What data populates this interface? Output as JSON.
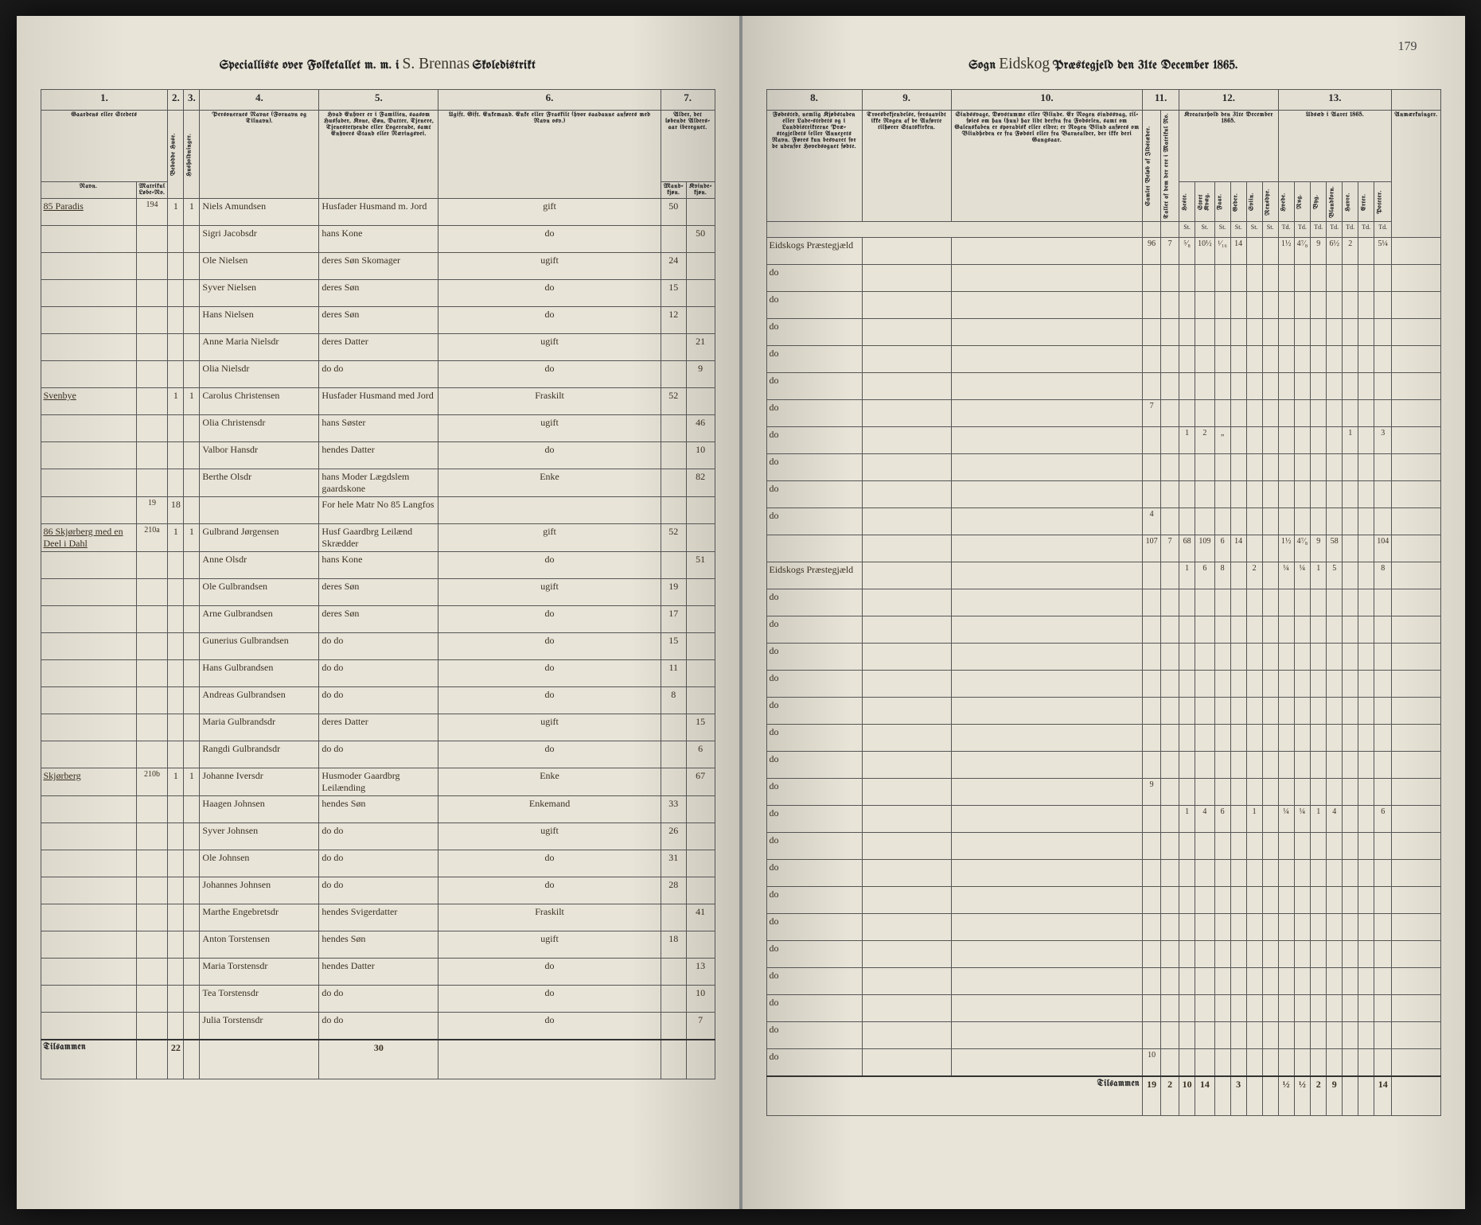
{
  "pageNumber": "179",
  "leftHeader": {
    "prefix": "Specialliste over Folketallet m. m. i",
    "district": "S. Brennas",
    "suffix": "Skoledistrikt"
  },
  "rightHeader": {
    "sognLabel": "Sogn",
    "sogn": "Eidskog",
    "suffix": "Præstegjeld den 31te December 1865."
  },
  "leftColumns": {
    "c1": "1.",
    "c2": "2.",
    "c3": "3.",
    "c4": "4.",
    "c5": "5.",
    "c6": "6.",
    "c7": "7."
  },
  "rightColumns": {
    "c8": "8.",
    "c9": "9.",
    "c10": "10.",
    "c11": "11.",
    "c12": "12.",
    "c13": "13."
  },
  "leftHeaders": {
    "h1": "Gaardens eller Stedets",
    "h1a": "Navn.",
    "h1b": "Matrikul Løbe-No.",
    "h2": "Bebodde Huse.",
    "h3": "Husholdninger.",
    "h4": "Personernes Navne (Fornavn og Tilnavn).",
    "h5": "Hvad Enhver er i Familien, saasom Husfader, Kone, Søn, Datter, Tjenere, Tjenestetyende eller Logerende, samt Enhvers Stand eller Næringsvei.",
    "h6": "Ugift. Gift. Enkemand. Enke eller Fraskilt (hvor saadanne anføres med Navn osv.)",
    "h7": "Alder, det løbende Alders-aar iberegnet.",
    "h7a": "Mand-kjøn.",
    "h7b": "Kvinde-kjøn."
  },
  "rightHeaders": {
    "h8": "Fødested, nemlig Kjøbstaden eller Lade-stedets og i Landdistrikterne Præ-stegjeldets (eller Annexets Navn. Føres kun besvaret for de udenfor Hovedsognet fødte.",
    "h9": "Troesbekjendelse, forsaavidt ikke Nogen af de Anførte tilhører Statskirken.",
    "h10": "Sindssvage, Døvstumme eller Blinde. Er Nogen sindssvag, til-føies om han (hun) har lidt derfra fra Fodselen, samt om Galenskaben er sporadisk eller eldre; er Nogen Blind anføres om Blindheden er fra Fødsel eller fra Barnealder, der ikke deri Gangsaar.",
    "h11a": "Samlet Beløb af Ildstæder.",
    "h11b": "Tallet af dem der ere i Matrikul No.",
    "h12": "Kreaturhold den 31te December 1865.",
    "h12sub": [
      "Heste.",
      "Stort Kvæg.",
      "Faar.",
      "Geder.",
      "Sviin.",
      "Rensdyr."
    ],
    "h13": "Udsæd i Aaret 1865.",
    "h13sub": [
      "Hvede.",
      "Rug.",
      "Byg.",
      "Blandkorn.",
      "Havre.",
      "Erter.",
      "Poteter."
    ],
    "hRemarks": "Anmærkninger.",
    "hTd": "Td.",
    "hSt": "St."
  },
  "leftRows": [
    {
      "num": "85",
      "farm": "Paradis",
      "mat": "194",
      "hus": "1",
      "hh": "1",
      "name": "Niels Amundsen",
      "role": "Husfader Husmand m. Jord",
      "stat": "gift",
      "m": "50",
      "f": ""
    },
    {
      "num": "",
      "farm": "",
      "mat": "",
      "hus": "",
      "hh": "",
      "name": "Sigri Jacobsdr",
      "role": "hans Kone",
      "stat": "do",
      "m": "",
      "f": "50"
    },
    {
      "num": "",
      "farm": "",
      "mat": "",
      "hus": "",
      "hh": "",
      "name": "Ole Nielsen",
      "role": "deres Søn   Skomager",
      "stat": "ugift",
      "m": "24",
      "f": ""
    },
    {
      "num": "",
      "farm": "",
      "mat": "",
      "hus": "",
      "hh": "",
      "name": "Syver Nielsen",
      "role": "deres Søn",
      "stat": "do",
      "m": "15",
      "f": ""
    },
    {
      "num": "",
      "farm": "",
      "mat": "",
      "hus": "",
      "hh": "",
      "name": "Hans Nielsen",
      "role": "deres Søn",
      "stat": "do",
      "m": "12",
      "f": ""
    },
    {
      "num": "",
      "farm": "",
      "mat": "",
      "hus": "",
      "hh": "",
      "name": "Anne Maria Nielsdr",
      "role": "deres Datter",
      "stat": "ugift",
      "m": "",
      "f": "21"
    },
    {
      "num": "",
      "farm": "",
      "mat": "",
      "hus": "",
      "hh": "",
      "name": "Olia Nielsdr",
      "role": "   do         do",
      "stat": "do",
      "m": "",
      "f": "9"
    },
    {
      "num": "",
      "farm": "Svenbye",
      "mat": "",
      "hus": "1",
      "hh": "1",
      "name": "Carolus Christensen",
      "role": "Husfader Husmand med Jord",
      "stat": "Fraskilt",
      "m": "52",
      "f": ""
    },
    {
      "num": "",
      "farm": "",
      "mat": "",
      "hus": "",
      "hh": "",
      "name": "Olia Christensdr",
      "role": "hans Søster",
      "stat": "ugift",
      "m": "",
      "f": "46"
    },
    {
      "num": "",
      "farm": "",
      "mat": "",
      "hus": "",
      "hh": "",
      "name": "Valbor Hansdr",
      "role": "hendes Datter",
      "stat": "do",
      "m": "",
      "f": "10"
    },
    {
      "num": "",
      "farm": "",
      "mat": "",
      "hus": "",
      "hh": "",
      "name": "Berthe Olsdr",
      "role": "hans Moder Lægdslem gaardskone",
      "stat": "Enke",
      "m": "",
      "f": "82"
    },
    {
      "num": "",
      "farm": "",
      "mat": "19",
      "hus": "18",
      "hh": "",
      "name": "",
      "role": "For hele Matr No 85 Langfos",
      "stat": "",
      "m": "",
      "f": ""
    },
    {
      "num": "86",
      "farm": "Skjørberg med en Deel i Dahl",
      "mat": "210a",
      "hus": "1",
      "hh": "1",
      "name": "Gulbrand Jørgensen",
      "role": "Husf Gaardbrg Leilænd Skrædder",
      "stat": "gift",
      "m": "52",
      "f": ""
    },
    {
      "num": "",
      "farm": "",
      "mat": "",
      "hus": "",
      "hh": "",
      "name": "Anne Olsdr",
      "role": "hans Kone",
      "stat": "do",
      "m": "",
      "f": "51"
    },
    {
      "num": "",
      "farm": "",
      "mat": "",
      "hus": "",
      "hh": "",
      "name": "Ole Gulbrandsen",
      "role": "deres Søn",
      "stat": "ugift",
      "m": "19",
      "f": ""
    },
    {
      "num": "",
      "farm": "",
      "mat": "",
      "hus": "",
      "hh": "",
      "name": "Arne Gulbrandsen",
      "role": "deres Søn",
      "stat": "do",
      "m": "17",
      "f": ""
    },
    {
      "num": "",
      "farm": "",
      "mat": "",
      "hus": "",
      "hh": "",
      "name": "Gunerius Gulbrandsen",
      "role": "   do      do",
      "stat": "do",
      "m": "15",
      "f": ""
    },
    {
      "num": "",
      "farm": "",
      "mat": "",
      "hus": "",
      "hh": "",
      "name": "Hans Gulbrandsen",
      "role": "   do      do",
      "stat": "do",
      "m": "11",
      "f": ""
    },
    {
      "num": "",
      "farm": "",
      "mat": "",
      "hus": "",
      "hh": "",
      "name": "Andreas Gulbrandsen",
      "role": "   do      do",
      "stat": "do",
      "m": "8",
      "f": ""
    },
    {
      "num": "",
      "farm": "",
      "mat": "",
      "hus": "",
      "hh": "",
      "name": "Maria Gulbrandsdr",
      "role": "deres Datter",
      "stat": "ugift",
      "m": "",
      "f": "15"
    },
    {
      "num": "",
      "farm": "",
      "mat": "",
      "hus": "",
      "hh": "",
      "name": "Rangdi Gulbrandsdr",
      "role": "   do      do",
      "stat": "do",
      "m": "",
      "f": "6"
    },
    {
      "num": "",
      "farm": "Skjørberg",
      "mat": "210b",
      "hus": "1",
      "hh": "1",
      "name": "Johanne Iversdr",
      "role": "Husmoder Gaardbrg Leilænding",
      "stat": "Enke",
      "m": "",
      "f": "67"
    },
    {
      "num": "",
      "farm": "",
      "mat": "",
      "hus": "",
      "hh": "",
      "name": "Haagen Johnsen",
      "role": "hendes Søn",
      "stat": "Enkemand",
      "m": "33",
      "f": ""
    },
    {
      "num": "",
      "farm": "",
      "mat": "",
      "hus": "",
      "hh": "",
      "name": "Syver Johnsen",
      "role": "   do      do",
      "stat": "ugift",
      "m": "26",
      "f": ""
    },
    {
      "num": "",
      "farm": "",
      "mat": "",
      "hus": "",
      "hh": "",
      "name": "Ole Johnsen",
      "role": "   do      do",
      "stat": "do",
      "m": "31",
      "f": ""
    },
    {
      "num": "",
      "farm": "",
      "mat": "",
      "hus": "",
      "hh": "",
      "name": "Johannes Johnsen",
      "role": "   do      do",
      "stat": "do",
      "m": "28",
      "f": ""
    },
    {
      "num": "",
      "farm": "",
      "mat": "",
      "hus": "",
      "hh": "",
      "name": "Marthe Engebretsdr",
      "role": "hendes Svigerdatter",
      "stat": "Fraskilt",
      "m": "",
      "f": "41"
    },
    {
      "num": "",
      "farm": "",
      "mat": "",
      "hus": "",
      "hh": "",
      "name": "Anton Torstensen",
      "role": "hendes Søn",
      "stat": "ugift",
      "m": "18",
      "f": ""
    },
    {
      "num": "",
      "farm": "",
      "mat": "",
      "hus": "",
      "hh": "",
      "name": "Maria Torstensdr",
      "role": "hendes Datter",
      "stat": "do",
      "m": "",
      "f": "13"
    },
    {
      "num": "",
      "farm": "",
      "mat": "",
      "hus": "",
      "hh": "",
      "name": "Tea Torstensdr",
      "role": "   do      do",
      "stat": "do",
      "m": "",
      "f": "10"
    },
    {
      "num": "",
      "farm": "",
      "mat": "",
      "hus": "",
      "hh": "",
      "name": "Julia Torstensdr",
      "role": "   do      do",
      "stat": "do",
      "m": "",
      "f": "7"
    }
  ],
  "leftSummary": {
    "label": "Tilsammen",
    "hus": "22",
    "hh": "",
    "count": "30"
  },
  "rightRows": [
    {
      "fst": "Eidskogs Præstegjæld",
      "sums": [
        "96",
        "7",
        "⁵⁄₈",
        "10½",
        "¹⁄₁₆",
        "14",
        "",
        "",
        "1½",
        "4⁷⁄₈",
        "9",
        "6½",
        "2",
        "",
        "5¼"
      ]
    },
    {
      "fst": "do",
      "sums": [
        "",
        "",
        "",
        "",
        "",
        "",
        "",
        "",
        "",
        "",
        "",
        "",
        "",
        "",
        ""
      ]
    },
    {
      "fst": "do",
      "sums": [
        "",
        "",
        "",
        "",
        "",
        "",
        "",
        "",
        "",
        "",
        "",
        "",
        "",
        "",
        ""
      ]
    },
    {
      "fst": "do",
      "sums": [
        "",
        "",
        "",
        "",
        "",
        "",
        "",
        "",
        "",
        "",
        "",
        "",
        "",
        "",
        ""
      ]
    },
    {
      "fst": "do",
      "sums": [
        "",
        "",
        "",
        "",
        "",
        "",
        "",
        "",
        "",
        "",
        "",
        "",
        "",
        "",
        ""
      ]
    },
    {
      "fst": "do",
      "sums": [
        "",
        "",
        "",
        "",
        "",
        "",
        "",
        "",
        "",
        "",
        "",
        "",
        "",
        "",
        ""
      ]
    },
    {
      "fst": "do",
      "sums": [
        "7",
        "",
        "",
        "",
        "",
        "",
        "",
        "",
        "",
        "",
        "",
        "",
        "",
        "",
        ""
      ]
    },
    {
      "fst": "do",
      "sums": [
        "",
        "",
        "1",
        "2",
        "„",
        "",
        "",
        "",
        "",
        "",
        "",
        "",
        "1",
        "",
        "3"
      ]
    },
    {
      "fst": "do",
      "sums": [
        "",
        "",
        "",
        "",
        "",
        "",
        "",
        "",
        "",
        "",
        "",
        "",
        "",
        "",
        ""
      ]
    },
    {
      "fst": "do",
      "sums": [
        "",
        "",
        "",
        "",
        "",
        "",
        "",
        "",
        "",
        "",
        "",
        "",
        "",
        "",
        ""
      ]
    },
    {
      "fst": "do",
      "sums": [
        "4",
        "",
        "",
        "",
        "",
        "",
        "",
        "",
        "",
        "",
        "",
        "",
        "",
        "",
        ""
      ]
    },
    {
      "fst": "",
      "sums": [
        "107",
        "7",
        "68",
        "109",
        "6",
        "14",
        "",
        "",
        "1½",
        "4⁷⁄₈",
        "9",
        "58",
        "",
        "",
        "104"
      ]
    },
    {
      "fst": "Eidskogs Præstegjæld",
      "sums": [
        "",
        "",
        "1",
        "6",
        "8",
        "",
        "2",
        "",
        "¼",
        "¼",
        "1",
        "5",
        "",
        "",
        "8"
      ]
    },
    {
      "fst": "do",
      "sums": [
        "",
        "",
        "",
        "",
        "",
        "",
        "",
        "",
        "",
        "",
        "",
        "",
        "",
        "",
        ""
      ]
    },
    {
      "fst": "do",
      "sums": [
        "",
        "",
        "",
        "",
        "",
        "",
        "",
        "",
        "",
        "",
        "",
        "",
        "",
        "",
        ""
      ]
    },
    {
      "fst": "do",
      "sums": [
        "",
        "",
        "",
        "",
        "",
        "",
        "",
        "",
        "",
        "",
        "",
        "",
        "",
        "",
        ""
      ]
    },
    {
      "fst": "do",
      "sums": [
        "",
        "",
        "",
        "",
        "",
        "",
        "",
        "",
        "",
        "",
        "",
        "",
        "",
        "",
        ""
      ]
    },
    {
      "fst": "do",
      "sums": [
        "",
        "",
        "",
        "",
        "",
        "",
        "",
        "",
        "",
        "",
        "",
        "",
        "",
        "",
        ""
      ]
    },
    {
      "fst": "do",
      "sums": [
        "",
        "",
        "",
        "",
        "",
        "",
        "",
        "",
        "",
        "",
        "",
        "",
        "",
        "",
        ""
      ]
    },
    {
      "fst": "do",
      "sums": [
        "",
        "",
        "",
        "",
        "",
        "",
        "",
        "",
        "",
        "",
        "",
        "",
        "",
        "",
        ""
      ]
    },
    {
      "fst": "do",
      "sums": [
        "9",
        "",
        "",
        "",
        "",
        "",
        "",
        "",
        "",
        "",
        "",
        "",
        "",
        "",
        ""
      ]
    },
    {
      "fst": "do",
      "sums": [
        "",
        "",
        "1",
        "4",
        "6",
        "",
        "1",
        "",
        "¼",
        "¼",
        "1",
        "4",
        "",
        "",
        "6"
      ]
    },
    {
      "fst": "do",
      "sums": [
        "",
        "",
        "",
        "",
        "",
        "",
        "",
        "",
        "",
        "",
        "",
        "",
        "",
        "",
        ""
      ]
    },
    {
      "fst": "do",
      "sums": [
        "",
        "",
        "",
        "",
        "",
        "",
        "",
        "",
        "",
        "",
        "",
        "",
        "",
        "",
        ""
      ]
    },
    {
      "fst": "do",
      "sums": [
        "",
        "",
        "",
        "",
        "",
        "",
        "",
        "",
        "",
        "",
        "",
        "",
        "",
        "",
        ""
      ]
    },
    {
      "fst": "do",
      "sums": [
        "",
        "",
        "",
        "",
        "",
        "",
        "",
        "",
        "",
        "",
        "",
        "",
        "",
        "",
        ""
      ]
    },
    {
      "fst": "do",
      "sums": [
        "",
        "",
        "",
        "",
        "",
        "",
        "",
        "",
        "",
        "",
        "",
        "",
        "",
        "",
        ""
      ]
    },
    {
      "fst": "do",
      "sums": [
        "",
        "",
        "",
        "",
        "",
        "",
        "",
        "",
        "",
        "",
        "",
        "",
        "",
        "",
        ""
      ]
    },
    {
      "fst": "do",
      "sums": [
        "",
        "",
        "",
        "",
        "",
        "",
        "",
        "",
        "",
        "",
        "",
        "",
        "",
        "",
        ""
      ]
    },
    {
      "fst": "do",
      "sums": [
        "",
        "",
        "",
        "",
        "",
        "",
        "",
        "",
        "",
        "",
        "",
        "",
        "",
        "",
        ""
      ]
    },
    {
      "fst": "do",
      "sums": [
        "10",
        "",
        "",
        "",
        "",
        "",
        "",
        "",
        "",
        "",
        "",
        "",
        "",
        "",
        ""
      ]
    }
  ],
  "rightSummary": {
    "label": "Tilsammen",
    "vals": [
      "19",
      "2",
      "10",
      "14",
      "",
      "3",
      "",
      "",
      "½",
      "½",
      "2",
      "9",
      "",
      "",
      "14"
    ]
  },
  "colors": {
    "pageBg": "#e8e4d8",
    "darkBg": "#1a1a1a",
    "ink": "#3a3020",
    "rule": "#555555"
  }
}
